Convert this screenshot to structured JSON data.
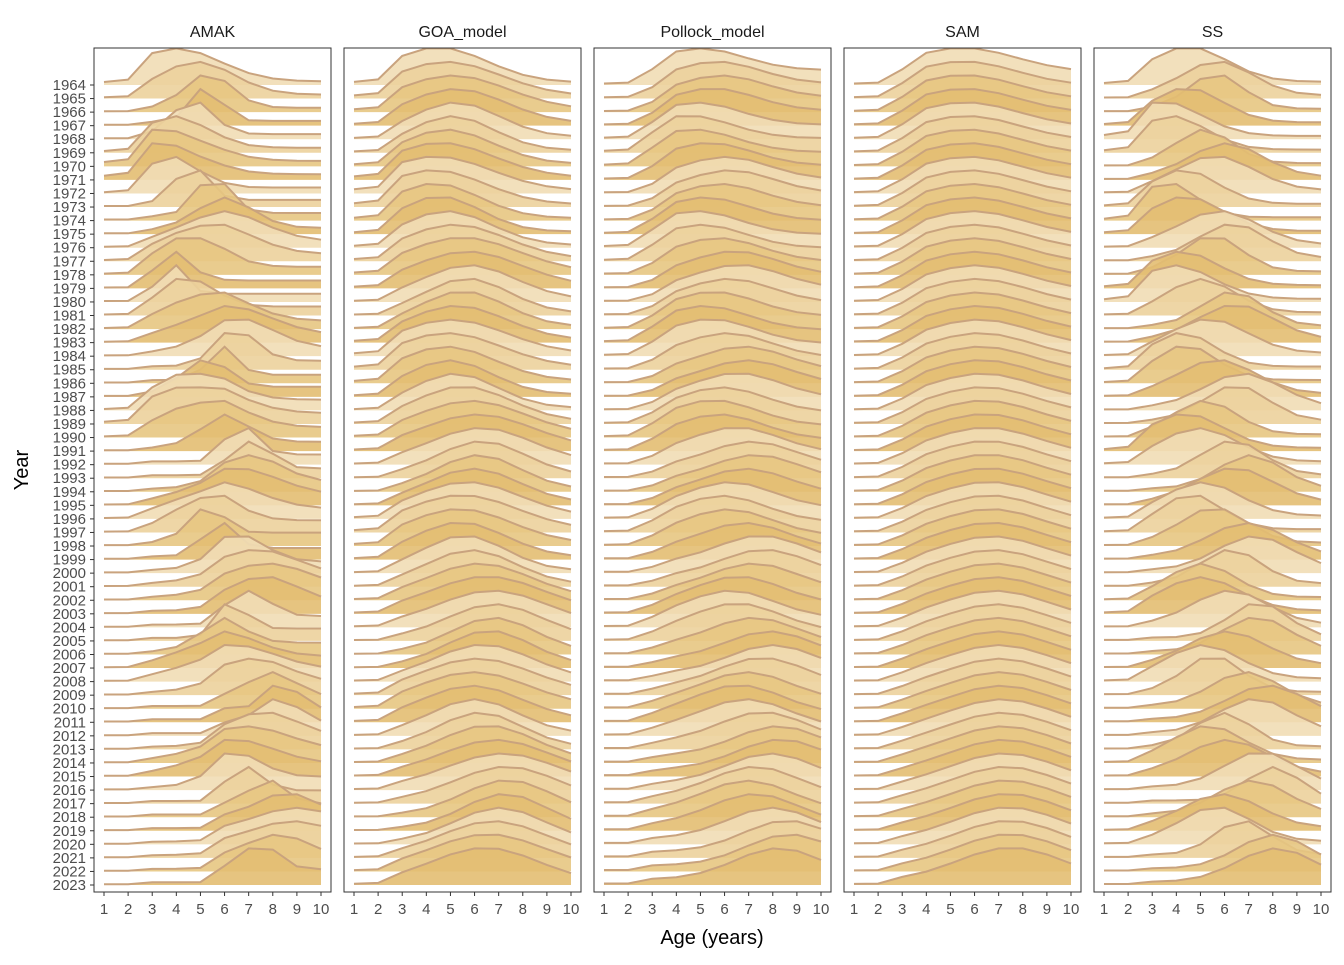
{
  "chart_data": {
    "type": "area",
    "subtype": "ridgeline",
    "facet_labels": [
      "AMAK",
      "GOA_model",
      "Pollock_model",
      "SAM",
      "SS"
    ],
    "x_label": "Age (years)",
    "y_label": "Year",
    "x_ticks": [
      1,
      2,
      3,
      4,
      5,
      6,
      7,
      8,
      9,
      10
    ],
    "years": [
      1964,
      1965,
      1966,
      1967,
      1968,
      1969,
      1970,
      1971,
      1972,
      1973,
      1974,
      1975,
      1976,
      1977,
      1978,
      1979,
      1980,
      1981,
      1982,
      1983,
      1984,
      1985,
      1986,
      1987,
      1988,
      1989,
      1990,
      1991,
      1992,
      1993,
      1994,
      1995,
      1996,
      1997,
      1998,
      1999,
      2000,
      2001,
      2002,
      2003,
      2004,
      2005,
      2006,
      2007,
      2008,
      2009,
      2010,
      2011,
      2012,
      2013,
      2014,
      2015,
      2016,
      2017,
      2018,
      2019,
      2020,
      2021,
      2022,
      2023
    ],
    "value_scale": "relative ridge height (proportion at age, max ≈ 2.7 row spacings)",
    "fill_colors": [
      "#f1ddb5",
      "#ecd29c",
      "#e7c782",
      "#e3be72"
    ],
    "line_color": "#c9a37e",
    "grid": false,
    "legend": "none"
  },
  "labels": {
    "facets": [
      "AMAK",
      "GOA_model",
      "Pollock_model",
      "SAM",
      "SS"
    ],
    "x_axis_title": "Age (years)",
    "y_axis_title": "Year"
  }
}
